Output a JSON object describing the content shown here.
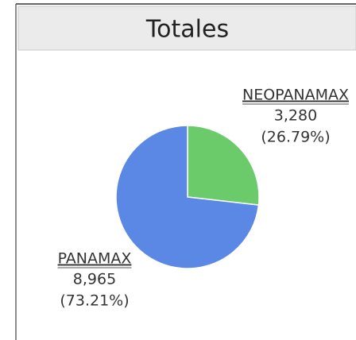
{
  "chart_data": {
    "type": "pie",
    "title": "Totales",
    "categories": [
      "NEOPANAMAX",
      "PANAMAX"
    ],
    "values": [
      3280,
      8965
    ],
    "value_labels": [
      "3,280",
      "8,965"
    ],
    "percent_labels": [
      "(26.79%)",
      "(73.21%)"
    ],
    "colors": [
      "#6bcb6a",
      "#5b88e5"
    ]
  }
}
